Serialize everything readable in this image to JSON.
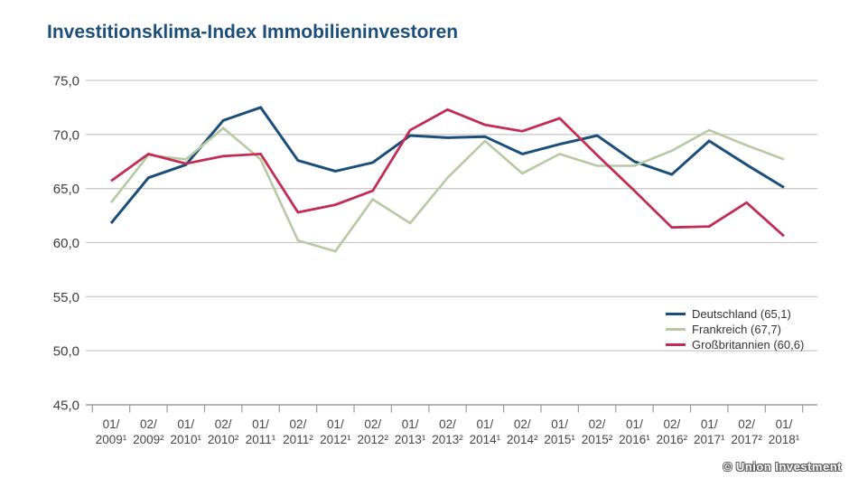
{
  "page": {
    "title": "Investitionsklima-Index Immobilieninvestoren",
    "watermark": "© Union Investment"
  },
  "chart_data": {
    "type": "line",
    "title": "Investitionsklima-Index Immobilieninvestoren",
    "categories": [
      "01/2009¹",
      "02/2009²",
      "01/2010¹",
      "02/2010²",
      "01/2011¹",
      "02/2011²",
      "01/2012¹",
      "02/2012²",
      "01/2013¹",
      "02/2013²",
      "01/2014¹",
      "02/2014²",
      "01/2015¹",
      "02/2015²",
      "01/2016¹",
      "02/2016²",
      "01/2017¹",
      "02/2017²",
      "01/2018¹"
    ],
    "series": [
      {
        "name": "Deutschland",
        "legend_label": "Deutschland (65,1)",
        "color": "#1b4e79",
        "stroke_width": 3,
        "values": [
          61.8,
          66.0,
          67.2,
          71.3,
          72.5,
          67.6,
          66.6,
          67.4,
          69.9,
          69.7,
          69.8,
          68.2,
          69.1,
          69.9,
          67.5,
          66.3,
          69.4,
          67.2,
          65.1
        ]
      },
      {
        "name": "Frankreich",
        "legend_label": "Frankreich (67,7)",
        "color": "#b7c9a3",
        "stroke_width": 2.6,
        "values": [
          63.7,
          68.1,
          67.7,
          70.6,
          67.7,
          60.2,
          59.2,
          64.0,
          61.8,
          66.0,
          69.4,
          66.4,
          68.2,
          67.1,
          67.1,
          68.5,
          70.4,
          69.0,
          67.7
        ]
      },
      {
        "name": "Großbritannien",
        "legend_label": "Großbritannien (60,6)",
        "color": "#c22d53",
        "stroke_width": 2.8,
        "values": [
          65.7,
          68.2,
          67.3,
          68.0,
          68.2,
          62.8,
          63.5,
          64.8,
          70.4,
          72.3,
          70.9,
          70.3,
          71.5,
          68.1,
          64.8,
          61.4,
          61.5,
          63.7,
          60.6
        ]
      }
    ],
    "ylim": [
      45,
      75
    ],
    "y_tick_step": 5,
    "y_tick_labels": [
      "75,0",
      "70,0",
      "65,0",
      "60,0",
      "55,0",
      "50,0",
      "45,0"
    ],
    "xlabel": "",
    "ylabel": "",
    "grid": true,
    "legend_position": "middle-right"
  },
  "style": {
    "grid_color": "#cbcbcb",
    "axis_color": "#9b9b9b",
    "tick_text_color": "#3d3d3d"
  }
}
